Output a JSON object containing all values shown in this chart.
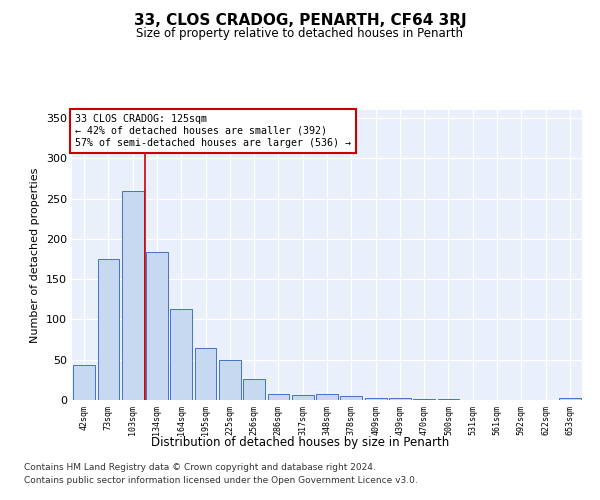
{
  "title": "33, CLOS CRADOG, PENARTH, CF64 3RJ",
  "subtitle": "Size of property relative to detached houses in Penarth",
  "xlabel": "Distribution of detached houses by size in Penarth",
  "ylabel": "Number of detached properties",
  "categories": [
    "42sqm",
    "73sqm",
    "103sqm",
    "134sqm",
    "164sqm",
    "195sqm",
    "225sqm",
    "256sqm",
    "286sqm",
    "317sqm",
    "348sqm",
    "378sqm",
    "409sqm",
    "439sqm",
    "470sqm",
    "500sqm",
    "531sqm",
    "561sqm",
    "592sqm",
    "622sqm",
    "653sqm"
  ],
  "values": [
    43,
    175,
    260,
    184,
    113,
    64,
    50,
    26,
    8,
    6,
    8,
    5,
    3,
    2,
    1,
    1,
    0,
    0,
    0,
    0,
    2
  ],
  "bar_color": "#c6d9f0",
  "bar_edge_color": "#4472c4",
  "background_color": "#eaf0fb",
  "grid_color": "#ffffff",
  "vline_x_index": 2.5,
  "vline_color": "#cc0000",
  "annotation_text": "33 CLOS CRADOG: 125sqm\n← 42% of detached houses are smaller (392)\n57% of semi-detached houses are larger (536) →",
  "annotation_box_color": "#ffffff",
  "annotation_box_edge_color": "#cc0000",
  "ylim": [
    0,
    360
  ],
  "yticks": [
    0,
    50,
    100,
    150,
    200,
    250,
    300,
    350
  ],
  "footer_line1": "Contains HM Land Registry data © Crown copyright and database right 2024.",
  "footer_line2": "Contains public sector information licensed under the Open Government Licence v3.0.",
  "fig_facecolor": "#ffffff"
}
